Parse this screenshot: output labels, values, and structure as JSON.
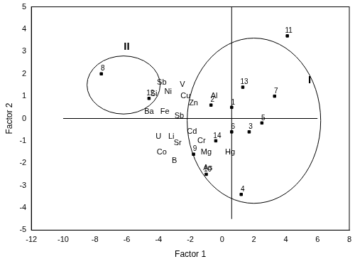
{
  "chart_data": {
    "type": "scatter",
    "x_label": "Factor 1",
    "y_label": "Factor 2",
    "x": [
      0.6,
      -0.7,
      1.7,
      1.2,
      2.5,
      0.6,
      3.3,
      -7.6,
      -1.8,
      -1.0,
      4.1,
      -4.6,
      1.3,
      -0.4
    ],
    "values": [
      0.5,
      0.6,
      -0.6,
      -3.4,
      -0.2,
      -0.6,
      1.0,
      2.0,
      -1.6,
      -2.5,
      3.7,
      0.9,
      1.4,
      -1.0
    ],
    "point_labels": [
      "1",
      "2",
      "3",
      "4",
      "5",
      "6",
      "7",
      "8",
      "9",
      "10",
      "11",
      "12",
      "13",
      "14"
    ],
    "color": "#000000",
    "marker": "square",
    "grid": false,
    "xlim": [
      -12,
      8
    ],
    "xticks": [
      -12,
      -10,
      -8,
      -6,
      -4,
      -2,
      0,
      2,
      4,
      6,
      8
    ],
    "ylim": [
      -5,
      5
    ],
    "yticks": [
      -5,
      -4,
      -3,
      -2,
      -1,
      0,
      1,
      2,
      3,
      4,
      5
    ],
    "annotations": [
      {
        "text": "Sb",
        "x": -3.8,
        "y": 1.6
      },
      {
        "text": "V",
        "x": -2.5,
        "y": 1.5
      },
      {
        "text": "Si",
        "x": -4.3,
        "y": 1.1
      },
      {
        "text": "Ni",
        "x": -3.4,
        "y": 1.2
      },
      {
        "text": "Cu",
        "x": -2.3,
        "y": 1.0
      },
      {
        "text": "Al",
        "x": -0.5,
        "y": 1.0
      },
      {
        "text": "Zn",
        "x": -1.8,
        "y": 0.7
      },
      {
        "text": "Ba",
        "x": -4.6,
        "y": 0.3
      },
      {
        "text": "Fe",
        "x": -3.6,
        "y": 0.3
      },
      {
        "text": "Sb",
        "x": -2.7,
        "y": 0.1
      },
      {
        "text": "U",
        "x": -4.0,
        "y": -0.8
      },
      {
        "text": "Li",
        "x": -3.2,
        "y": -0.8
      },
      {
        "text": "Cd",
        "x": -1.9,
        "y": -0.6
      },
      {
        "text": "Sr",
        "x": -2.8,
        "y": -1.1
      },
      {
        "text": "Cr",
        "x": -1.3,
        "y": -1.0
      },
      {
        "text": "Co",
        "x": -3.8,
        "y": -1.5
      },
      {
        "text": "Mg",
        "x": -1.0,
        "y": -1.5
      },
      {
        "text": "Hg",
        "x": 0.5,
        "y": -1.5
      },
      {
        "text": "B",
        "x": -3.0,
        "y": -1.9
      },
      {
        "text": "As",
        "x": -0.9,
        "y": -2.2
      }
    ],
    "ellipses": [
      {
        "label": "I",
        "cx": 2.0,
        "cy": -0.1,
        "rx": 4.2,
        "ry": 3.7,
        "label_x": 5.5,
        "label_y": 1.7
      },
      {
        "label": "II",
        "cx": -6.2,
        "cy": 1.5,
        "rx": 2.3,
        "ry": 1.3,
        "label_x": -6.0,
        "label_y": 3.2
      }
    ],
    "reference_lines": [
      {
        "x": [
          -10,
          6
        ],
        "y": [
          0,
          0
        ]
      },
      {
        "x": [
          0.6,
          0.6
        ],
        "y": [
          5,
          -4.5
        ]
      }
    ]
  }
}
